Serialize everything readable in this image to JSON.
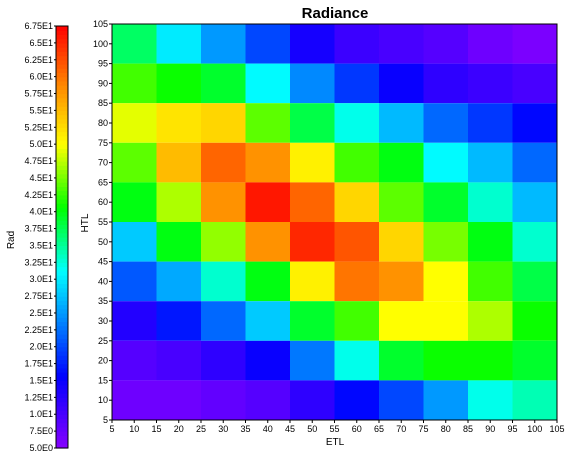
{
  "chart_data": {
    "type": "heatmap",
    "title": "Radiance",
    "xlabel": "ETL",
    "ylabel": "HTL",
    "colorbar_label": "Rad",
    "x_bin_edges": [
      5,
      15,
      25,
      35,
      45,
      55,
      65,
      75,
      85,
      95,
      105
    ],
    "y_bin_edges": [
      5,
      15,
      25,
      35,
      45,
      55,
      65,
      75,
      85,
      95,
      105
    ],
    "x_tick_labels": [
      "5",
      "10",
      "15",
      "20",
      "25",
      "30",
      "35",
      "40",
      "45",
      "50",
      "55",
      "60",
      "65",
      "70",
      "75",
      "80",
      "85",
      "90",
      "95",
      "100",
      "105"
    ],
    "y_tick_labels": [
      "5",
      "10",
      "15",
      "20",
      "25",
      "30",
      "35",
      "40",
      "45",
      "50",
      "55",
      "60",
      "65",
      "70",
      "75",
      "80",
      "85",
      "90",
      "95",
      "100",
      "105"
    ],
    "colorbar_range": [
      5.0,
      67.5
    ],
    "colorbar_tick_labels": [
      "6.75E1",
      "6.5E1",
      "6.25E1",
      "6.0E1",
      "5.75E1",
      "5.5E1",
      "5.25E1",
      "5.0E1",
      "4.75E1",
      "4.5E1",
      "4.25E1",
      "4.0E1",
      "3.75E1",
      "3.5E1",
      "3.25E1",
      "3.0E1",
      "2.75E1",
      "2.5E1",
      "2.25E1",
      "2.0E1",
      "1.75E1",
      "1.5E1",
      "1.25E1",
      "1.0E1",
      "7.5E0",
      "5.0E0"
    ],
    "z_rows_top_to_bottom": [
      [
        37,
        30,
        25,
        20,
        14,
        11,
        10,
        9,
        7,
        6
      ],
      [
        43,
        41,
        39,
        31,
        24,
        19,
        15,
        12,
        11,
        10
      ],
      [
        49,
        52,
        53,
        44,
        38,
        32,
        27,
        22,
        19,
        16
      ],
      [
        44,
        55,
        61,
        58,
        51,
        43,
        40,
        31,
        27,
        22
      ],
      [
        40,
        47,
        58,
        66,
        61,
        53,
        44,
        39,
        33,
        27
      ],
      [
        28,
        40,
        46,
        58,
        65,
        62,
        53,
        45,
        40,
        33
      ],
      [
        21,
        26,
        33,
        40,
        51,
        60,
        58,
        50,
        43,
        38
      ],
      [
        13,
        17,
        22,
        28,
        39,
        43,
        50,
        50,
        47,
        41
      ],
      [
        9,
        10,
        12,
        15,
        23,
        32,
        39,
        41,
        41,
        39
      ],
      [
        7,
        7,
        8,
        9,
        12,
        16,
        20,
        25,
        32,
        34
      ]
    ]
  }
}
